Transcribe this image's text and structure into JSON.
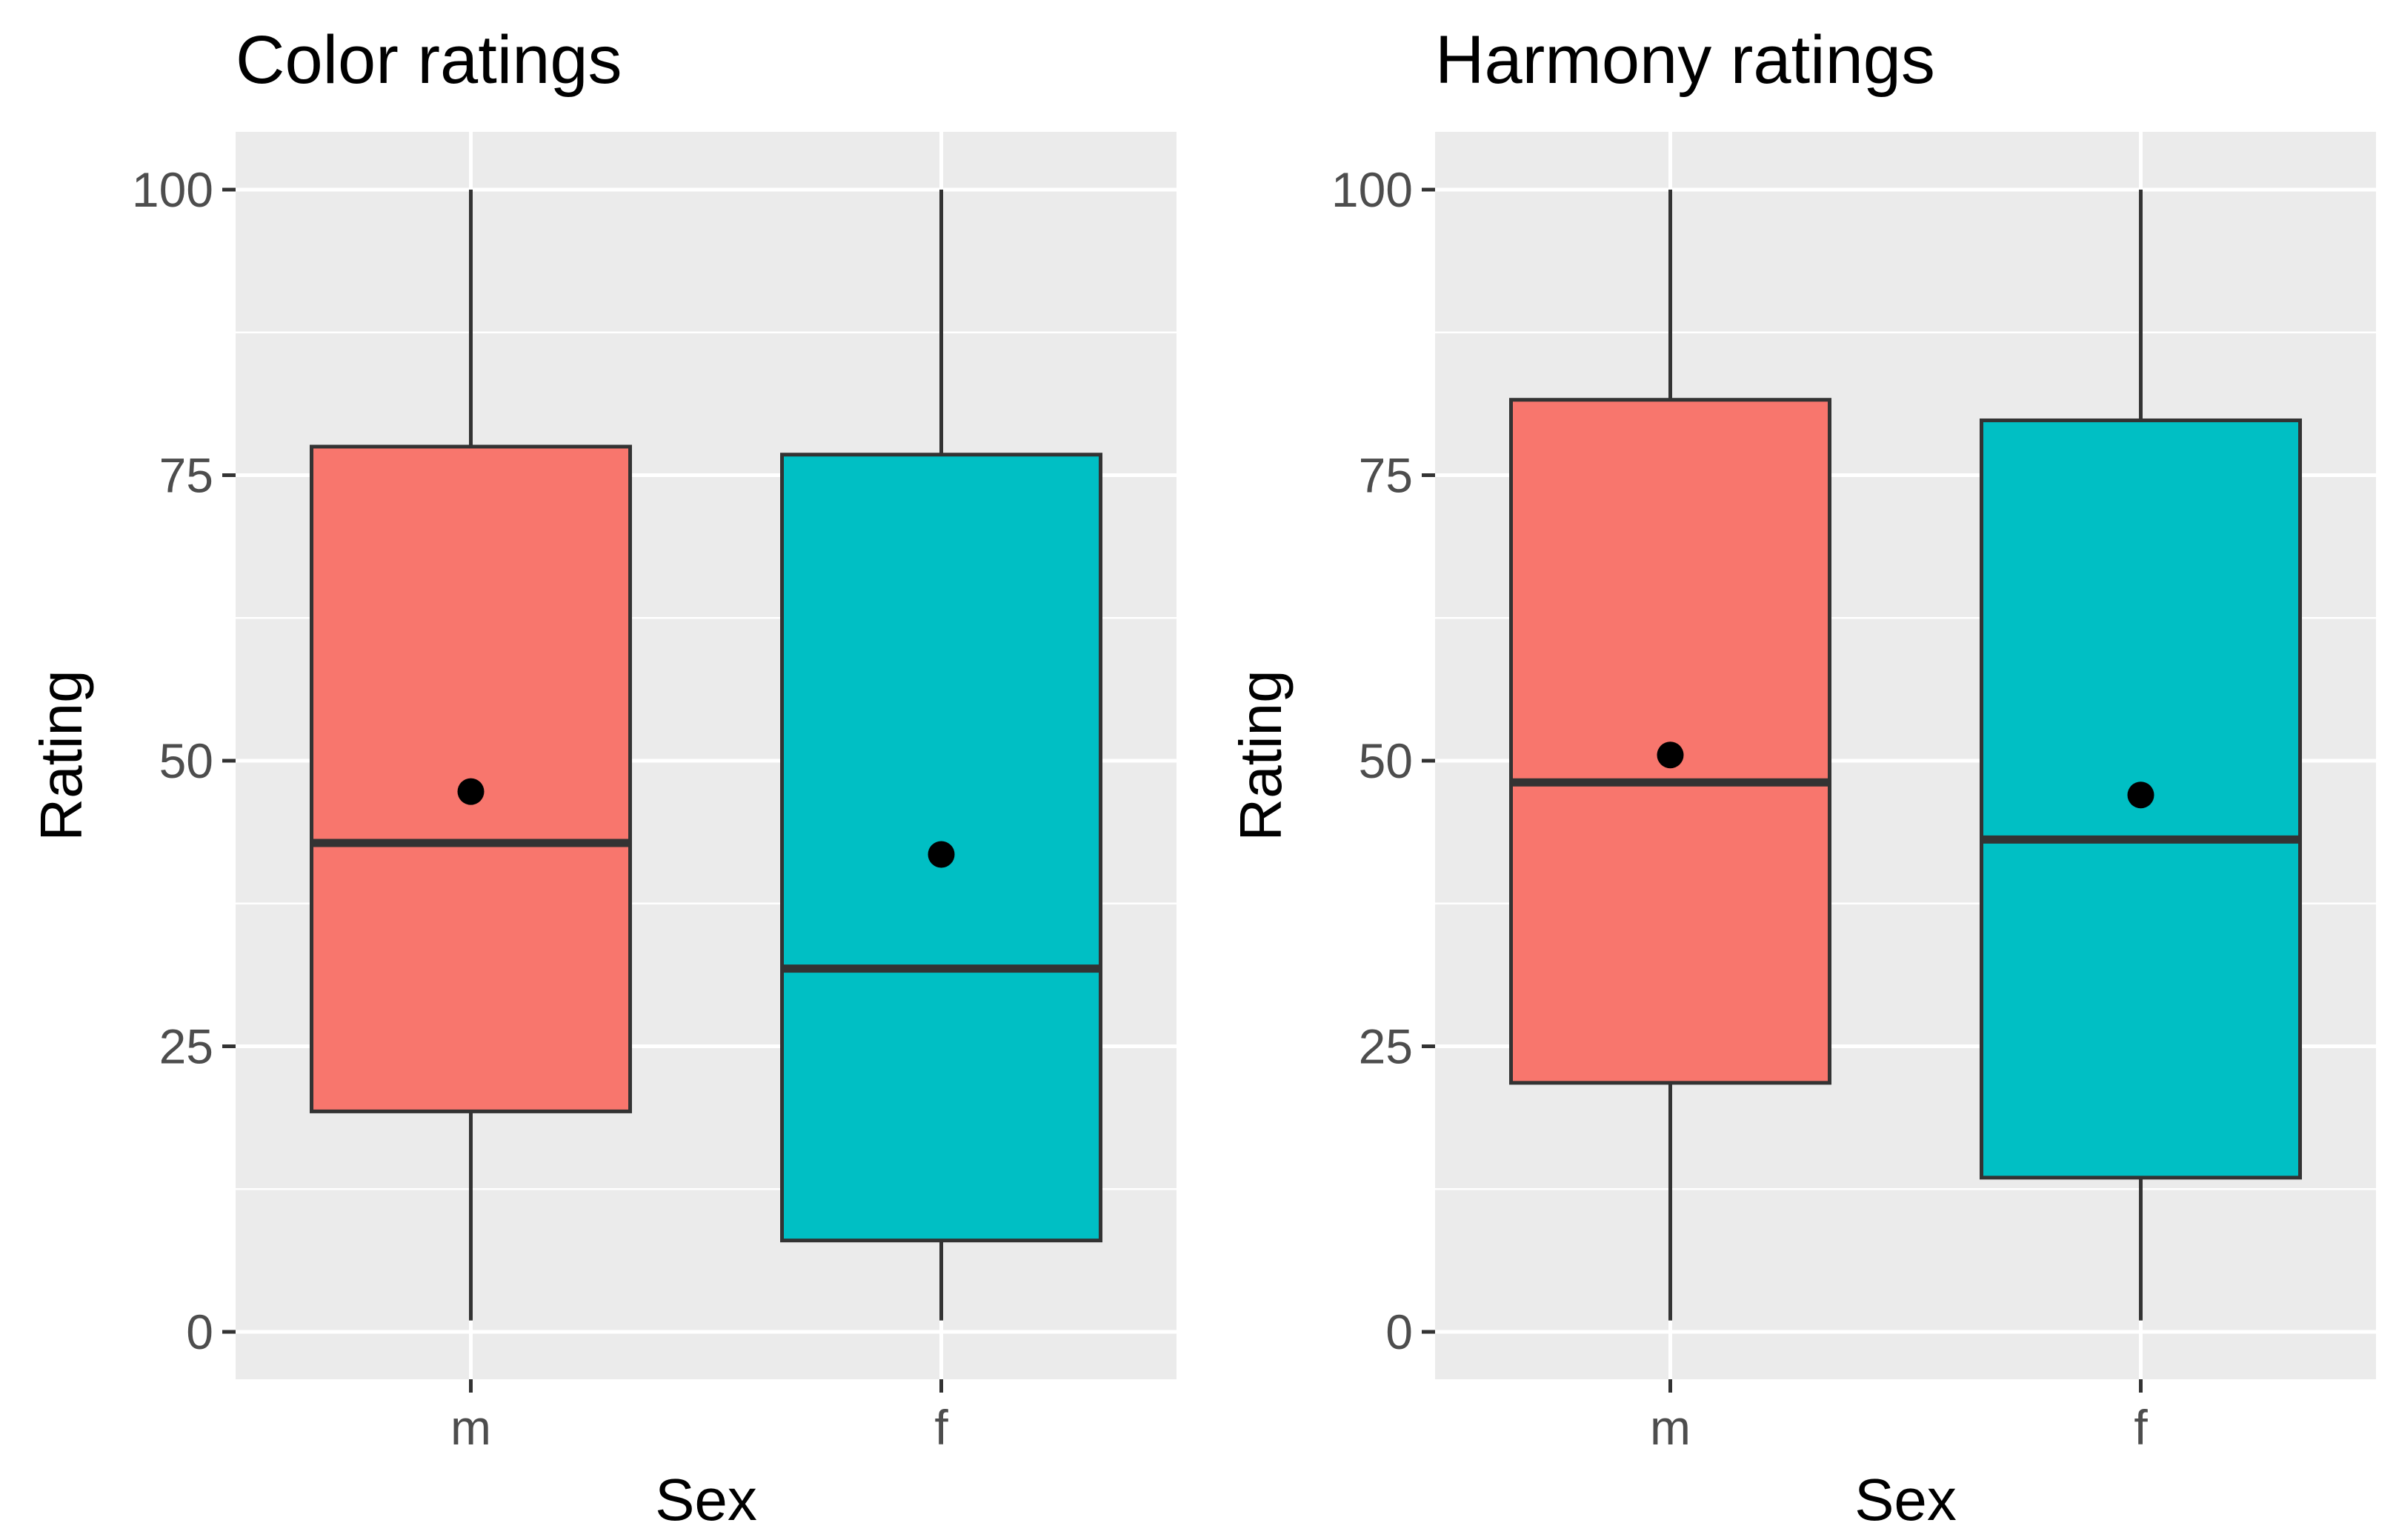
{
  "chart_data": [
    {
      "type": "boxplot",
      "title": "Color ratings",
      "xlabel": "Sex",
      "ylabel": "Rating",
      "ylim": [
        0,
        100
      ],
      "yticks": [
        0,
        25,
        50,
        75,
        100
      ],
      "grid": true,
      "categories": [
        "m",
        "f"
      ],
      "series": [
        {
          "name": "m",
          "color": "#F8766D",
          "min": 1,
          "q1": 19.3,
          "median": 42.8,
          "q3": 77.5,
          "max": 100,
          "mean": 47.3
        },
        {
          "name": "f",
          "color": "#00BFC4",
          "min": 1,
          "q1": 8,
          "median": 31.8,
          "q3": 76.8,
          "max": 100,
          "mean": 41.8
        }
      ]
    },
    {
      "type": "boxplot",
      "title": "Harmony ratings",
      "xlabel": "Sex",
      "ylabel": "Rating",
      "ylim": [
        0,
        100
      ],
      "yticks": [
        0,
        25,
        50,
        75,
        100
      ],
      "grid": true,
      "categories": [
        "m",
        "f"
      ],
      "series": [
        {
          "name": "m",
          "color": "#F8766D",
          "min": 1,
          "q1": 21.8,
          "median": 48.1,
          "q3": 81.6,
          "max": 100,
          "mean": 50.5
        },
        {
          "name": "f",
          "color": "#00BFC4",
          "min": 1,
          "q1": 13.5,
          "median": 43.1,
          "q3": 79.8,
          "max": 100,
          "mean": 47
        }
      ]
    }
  ]
}
